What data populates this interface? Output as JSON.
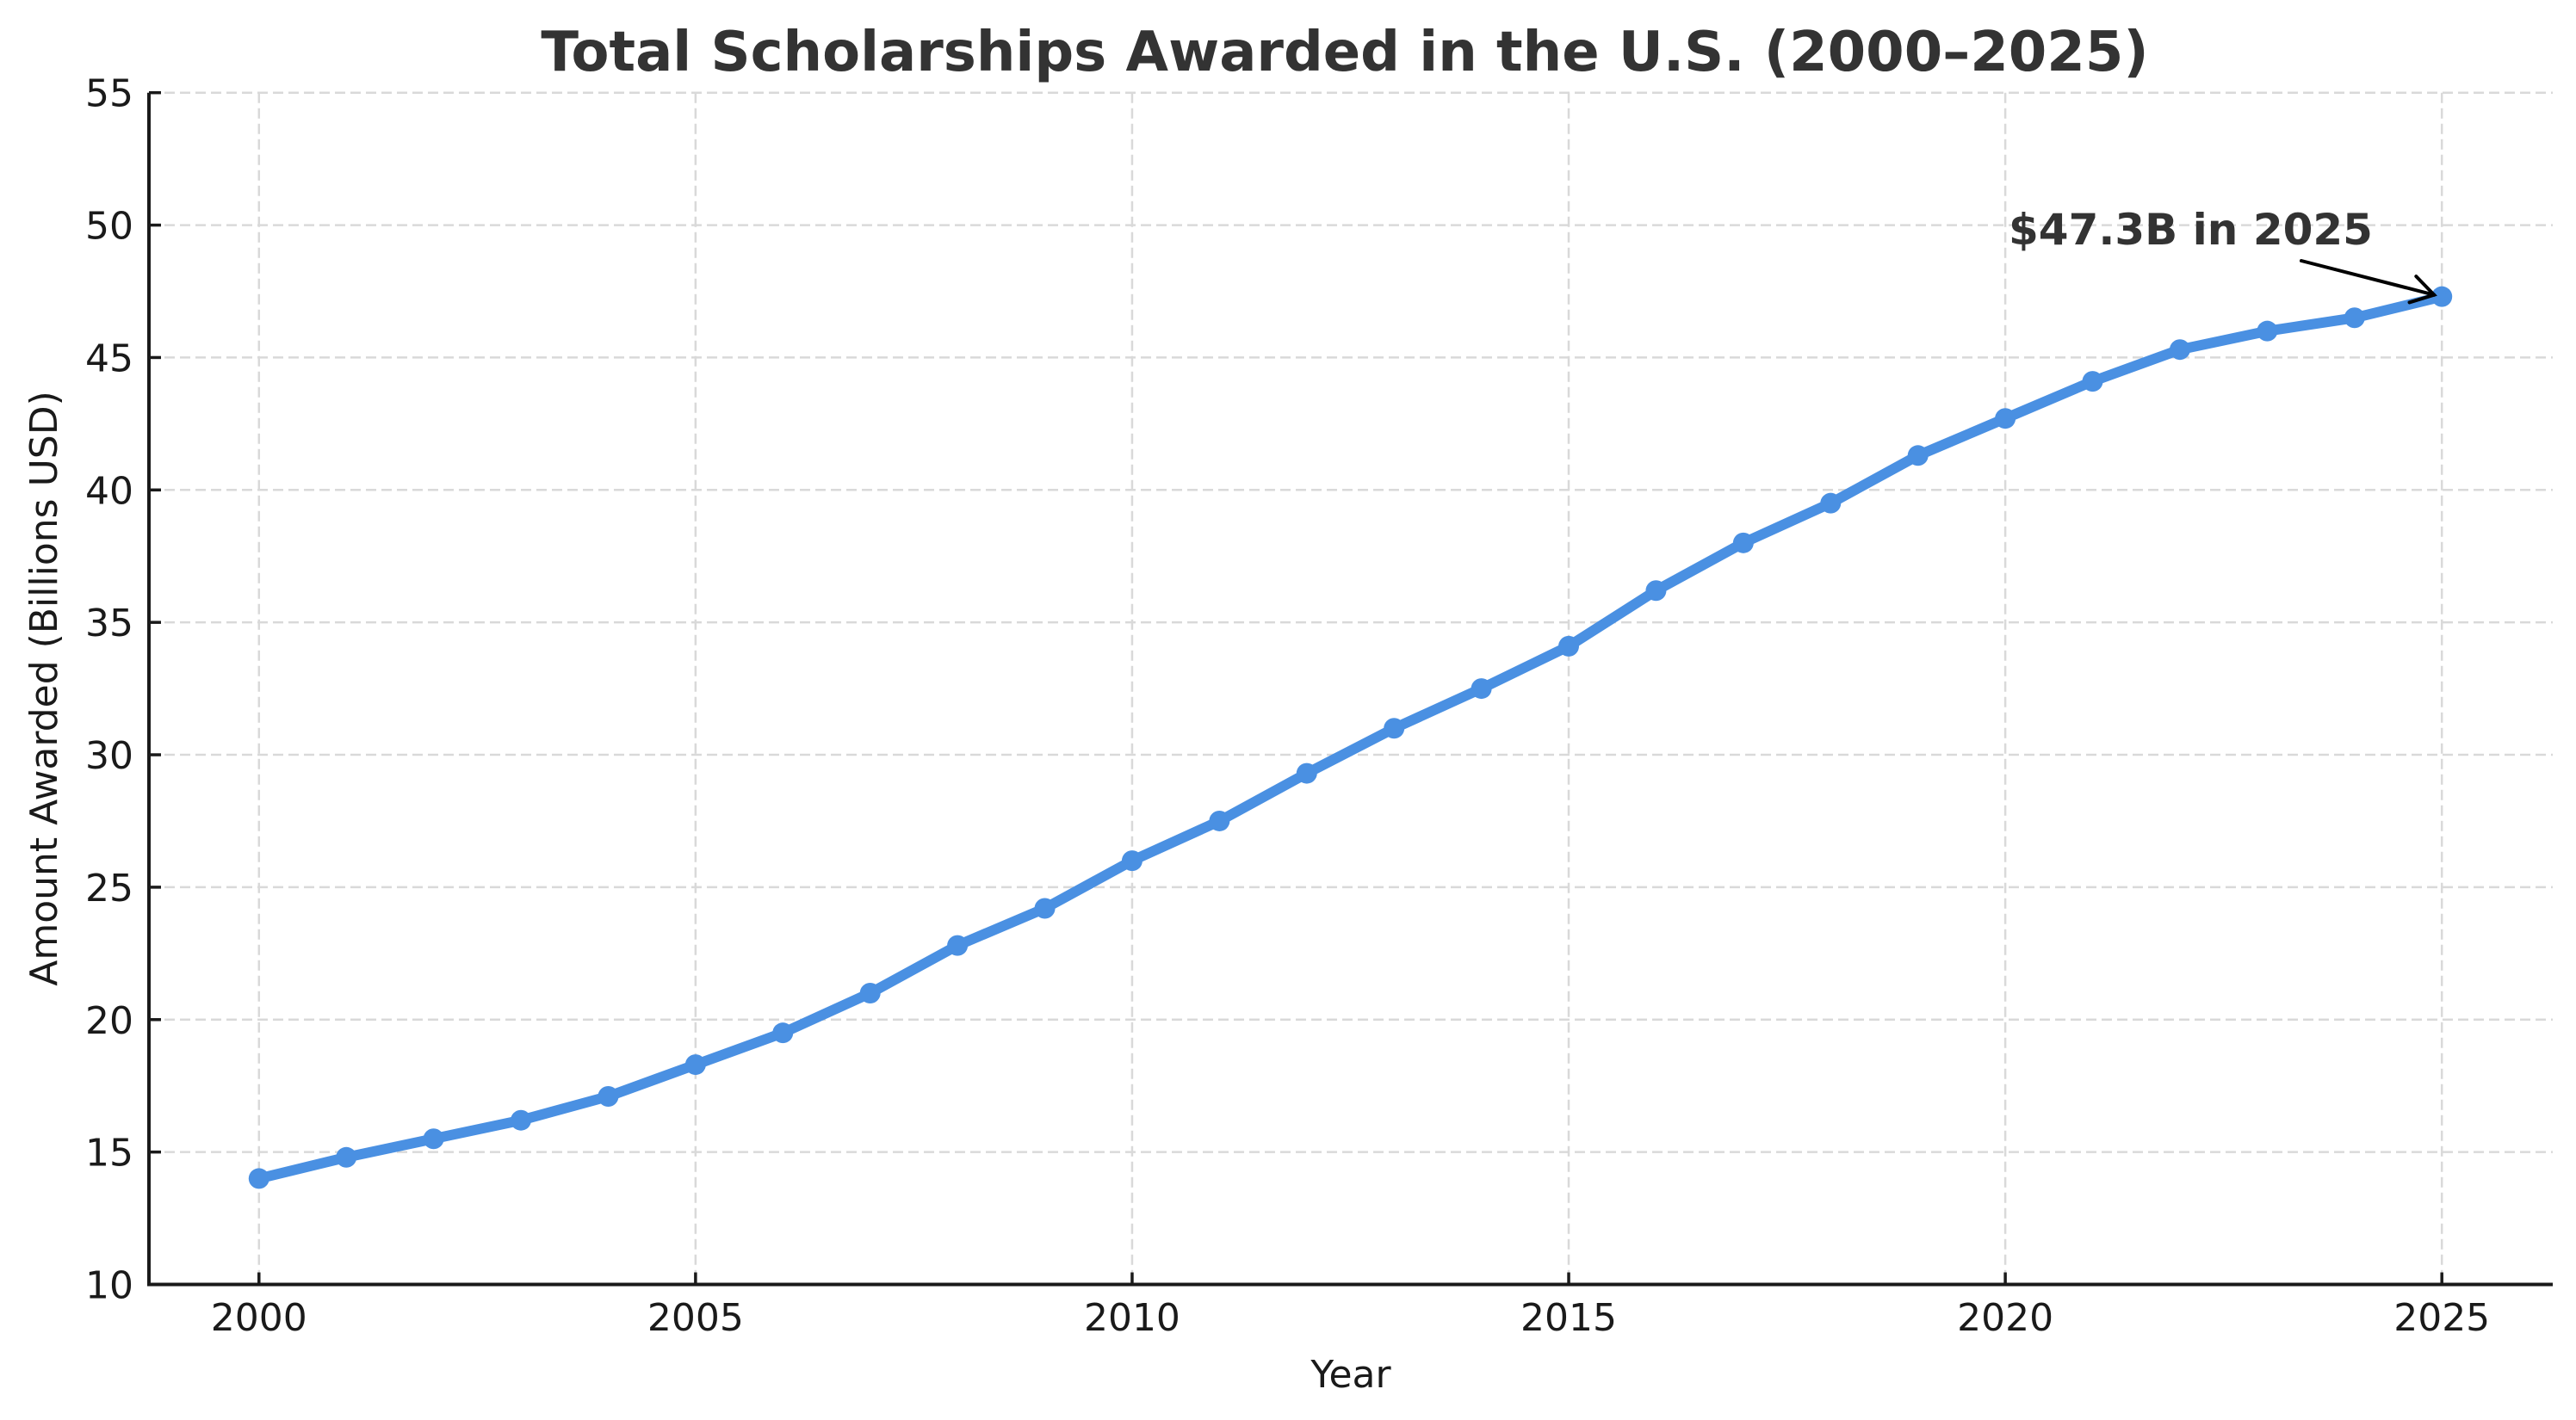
{
  "chart_data": {
    "type": "line",
    "title": "Total Scholarships Awarded in the U.S. (2000–2025)",
    "xlabel": "Year",
    "ylabel": "Amount Awarded (Billions USD)",
    "x": [
      2000,
      2001,
      2002,
      2003,
      2004,
      2005,
      2006,
      2007,
      2008,
      2009,
      2010,
      2011,
      2012,
      2013,
      2014,
      2015,
      2016,
      2017,
      2018,
      2019,
      2020,
      2021,
      2022,
      2023,
      2024,
      2025
    ],
    "series": [
      {
        "name": "Total Scholarships Awarded",
        "color": "#4a90e2",
        "marker": "circle",
        "values": [
          14.0,
          14.8,
          15.5,
          16.2,
          17.1,
          18.3,
          19.5,
          21.0,
          22.8,
          24.2,
          26.0,
          27.5,
          29.3,
          31.0,
          32.5,
          34.1,
          36.2,
          38.0,
          39.5,
          41.3,
          42.7,
          44.1,
          45.3,
          46.0,
          46.5,
          47.3
        ]
      }
    ],
    "xlim": [
      1998.74,
      2026.27
    ],
    "ylim": [
      10,
      55
    ],
    "xticks": [
      2000,
      2005,
      2010,
      2015,
      2020,
      2025
    ],
    "yticks": [
      10,
      15,
      20,
      25,
      30,
      35,
      40,
      45,
      50,
      55
    ],
    "grid": true,
    "grid_style": "dashed",
    "legend": null,
    "annotations": [
      {
        "text": "$47.3B in 2025",
        "xy": [
          2025,
          47.3
        ],
        "xytext": [
          2020.1,
          49.6
        ],
        "arrow": true
      }
    ]
  },
  "colors": {
    "line": "#4a90e2",
    "title": "#333333",
    "text": "#1a1a1a",
    "grid": "#d9d9d9",
    "arrow": "#000000"
  }
}
